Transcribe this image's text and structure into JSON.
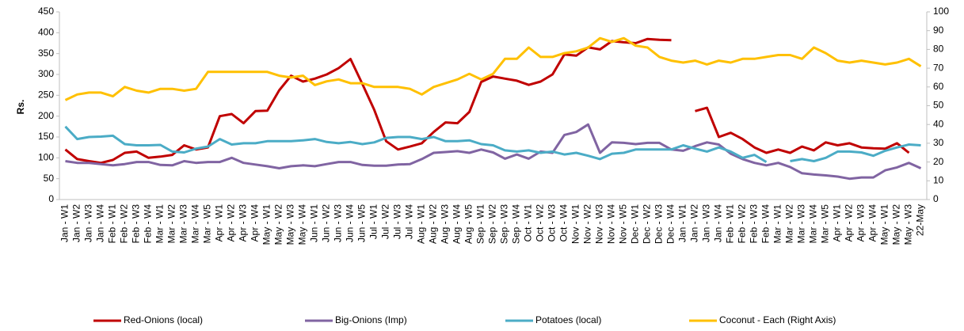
{
  "chart_data": {
    "type": "line",
    "ylabel": "Rs.",
    "categories": [
      "Jan - W1",
      "Jan - W2",
      "Jan - W3",
      "Jan - W4",
      "Feb - W1",
      "Feb - W2",
      "Feb - W3",
      "Feb - W4",
      "Mar - W1",
      "Mar - W2",
      "Mar - W3",
      "Mar - W4",
      "Mar - W5",
      "Apr - W1",
      "Apr - W2",
      "Apr - W3",
      "Apr - W4",
      "May - W1",
      "May - W2",
      "May - W3",
      "May - W4",
      "Jun - W1",
      "Jun - W2",
      "Jun - W3",
      "Jun - W4",
      "Jun - W5",
      "Jul - W1",
      "Jul - W2",
      "Jul - W3",
      "Jul - W4",
      "Aug - W1",
      "Aug - W2",
      "Aug - W3",
      "Aug - W4",
      "Aug - W5",
      "Sep - W1",
      "Sep - W2",
      "Sep - W3",
      "Sep - W4",
      "Oct - W1",
      "Oct - W2",
      "Oct - W3",
      "Oct - W4",
      "Nov - W1",
      "Nov - W2",
      "Nov - W3",
      "Nov - W4",
      "Nov - W5",
      "Dec - W1",
      "Dec - W2",
      "Dec - W3",
      "Dec - W4",
      "Jan - W1",
      "Jan - W2",
      "Jan - W3",
      "Jan - W4",
      "Feb - W1",
      "Feb - W2",
      "Feb - W3",
      "Feb - W4",
      "Mar - W1",
      "Mar - W2",
      "Mar - W3",
      "Mar - W4",
      "Mar - W5",
      "Apr - W1",
      "Apr - W2",
      "Apr - W3",
      "Apr - W4",
      "May - W1",
      "May - W2",
      "May - W3",
      "22-May"
    ],
    "series": [
      {
        "name": "Red-Onions (local)",
        "color": "#c00000",
        "values": [
          120,
          97,
          92,
          88,
          95,
          112,
          115,
          100,
          103,
          107,
          130,
          120,
          125,
          200,
          205,
          183,
          212,
          213,
          262,
          297,
          283,
          290,
          300,
          315,
          337,
          277,
          215,
          140,
          120,
          127,
          135,
          162,
          185,
          183,
          210,
          282,
          295,
          290,
          285,
          275,
          283,
          300,
          348,
          345,
          365,
          360,
          380,
          377,
          375,
          385,
          383,
          382,
          null,
          212,
          220,
          150,
          160,
          145,
          125,
          112,
          120,
          112,
          127,
          118,
          137,
          130,
          135,
          125,
          123,
          122,
          135,
          112,
          null
        ]
      },
      {
        "name": "Big-Onions (Imp)",
        "color": "#8064a2",
        "values": [
          92,
          88,
          88,
          85,
          82,
          85,
          90,
          90,
          83,
          82,
          92,
          88,
          90,
          90,
          100,
          88,
          84,
          80,
          75,
          80,
          82,
          80,
          85,
          90,
          90,
          83,
          81,
          81,
          84,
          85,
          97,
          112,
          114,
          116,
          112,
          120,
          113,
          98,
          108,
          98,
          115,
          112,
          155,
          162,
          180,
          112,
          137,
          136,
          133,
          136,
          136,
          120,
          117,
          128,
          137,
          132,
          110,
          97,
          88,
          82,
          88,
          78,
          63,
          60,
          58,
          55,
          50,
          53,
          53,
          70,
          77,
          88,
          75
        ]
      },
      {
        "name": "Potatoes (local)",
        "color": "#4bacc6",
        "values": [
          175,
          145,
          150,
          151,
          153,
          133,
          130,
          130,
          131,
          115,
          113,
          122,
          127,
          145,
          132,
          135,
          135,
          140,
          140,
          140,
          142,
          145,
          138,
          135,
          138,
          133,
          137,
          148,
          150,
          150,
          145,
          150,
          140,
          140,
          142,
          133,
          130,
          118,
          115,
          118,
          112,
          115,
          108,
          112,
          105,
          97,
          110,
          112,
          120,
          120,
          120,
          120,
          130,
          122,
          115,
          125,
          115,
          100,
          107,
          90,
          null,
          92,
          97,
          92,
          100,
          115,
          115,
          113,
          105,
          117,
          125,
          132,
          130
        ]
      },
      {
        "name": "Coconut - Each (Right Axis)",
        "color": "#ffc000",
        "axis": "y2",
        "values": [
          53,
          56,
          57,
          57,
          55,
          60,
          58,
          57,
          59,
          59,
          58,
          59,
          68,
          68,
          68,
          68,
          68,
          68,
          66,
          65,
          66,
          61,
          63,
          64,
          62,
          62,
          60,
          60,
          60,
          59,
          56,
          60,
          62,
          64,
          67,
          64,
          67,
          75,
          75,
          81,
          76,
          76,
          78,
          79,
          81,
          86,
          84,
          86,
          82,
          81,
          76,
          74,
          73,
          74,
          72,
          74,
          73,
          75,
          75,
          76,
          77,
          77,
          75,
          81,
          78,
          74,
          73,
          74,
          73,
          72,
          73,
          75,
          71
        ]
      }
    ],
    "ylim": [
      0,
      450
    ],
    "yticks": [
      0,
      50,
      100,
      150,
      200,
      250,
      300,
      350,
      400,
      450
    ],
    "y2lim": [
      0,
      100
    ],
    "y2ticks": [
      0,
      10,
      20,
      30,
      40,
      50,
      60,
      70,
      80,
      90,
      100
    ],
    "legend": "bottom"
  }
}
